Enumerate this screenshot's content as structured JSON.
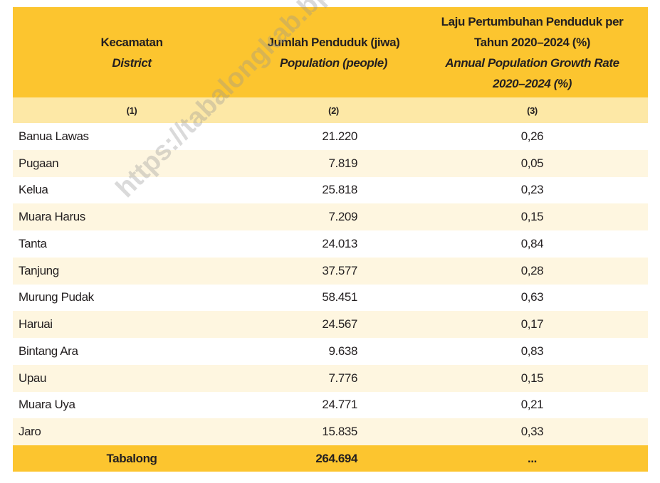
{
  "table": {
    "header": [
      {
        "title": "Kecamatan",
        "subtitle": "District"
      },
      {
        "title": "Jumlah Penduduk (jiwa)",
        "subtitle": "Population (people)"
      },
      {
        "title": "Laju Pertumbuhan Penduduk per Tahun 2020–2024 (%)",
        "subtitle": "Annual Population Growth Rate 2020–2024 (%)"
      }
    ],
    "column_numbers": [
      "(1)",
      "(2)",
      "(3)"
    ],
    "rows": [
      [
        "Banua Lawas",
        "21.220",
        "0,26"
      ],
      [
        "Pugaan",
        "7.819",
        "0,05"
      ],
      [
        "Kelua",
        "25.818",
        "0,23"
      ],
      [
        "Muara Harus",
        "7.209",
        "0,15"
      ],
      [
        "Tanta",
        "24.013",
        "0,84"
      ],
      [
        "Tanjung",
        "37.577",
        "0,28"
      ],
      [
        "Murung Pudak",
        "58.451",
        "0,63"
      ],
      [
        "Haruai",
        "24.567",
        "0,17"
      ],
      [
        "Bintang Ara",
        "9.638",
        "0,83"
      ],
      [
        "Upau",
        "7.776",
        "0,15"
      ],
      [
        "Muara Uya",
        "24.771",
        "0,21"
      ],
      [
        "Jaro",
        "15.835",
        "0,33"
      ]
    ],
    "total": [
      "Tabalong",
      "264.694",
      "..."
    ]
  },
  "watermark": "https://tabalongkab.bps.go.id"
}
